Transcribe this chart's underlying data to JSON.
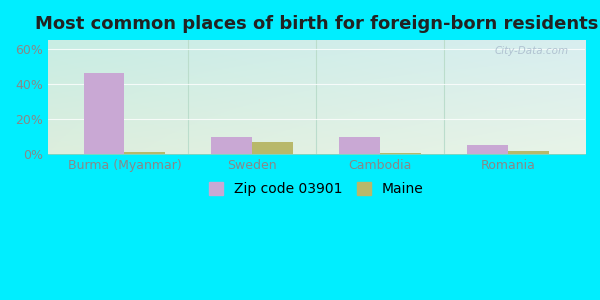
{
  "title": "Most common places of birth for foreign-born residents",
  "categories": [
    "Burma (Myanmar)",
    "Sweden",
    "Cambodia",
    "Romania"
  ],
  "zip_values": [
    46.5,
    10.0,
    10.0,
    5.0
  ],
  "maine_values": [
    1.0,
    7.0,
    0.5,
    2.0
  ],
  "zip_color": "#c9a8d4",
  "maine_color": "#b8b86a",
  "zip_label": "Zip code 03901",
  "maine_label": "Maine",
  "ylim": [
    0,
    65
  ],
  "yticks": [
    0,
    20,
    40,
    60
  ],
  "ytick_labels": [
    "0%",
    "20%",
    "40%",
    "60%"
  ],
  "bg_outer": "#00eeff",
  "bg_plot_topleft": "#c8ede4",
  "bg_plot_topright": "#d8eef0",
  "bg_plot_bottomleft": "#ddeedd",
  "bg_plot_bottomright": "#e8f4e8",
  "grid_color": "#ccddcc",
  "title_fontsize": 13,
  "axis_fontsize": 9,
  "legend_fontsize": 10,
  "bar_width": 0.32,
  "tick_color": "#888888",
  "separator_color": "#bbddcc"
}
